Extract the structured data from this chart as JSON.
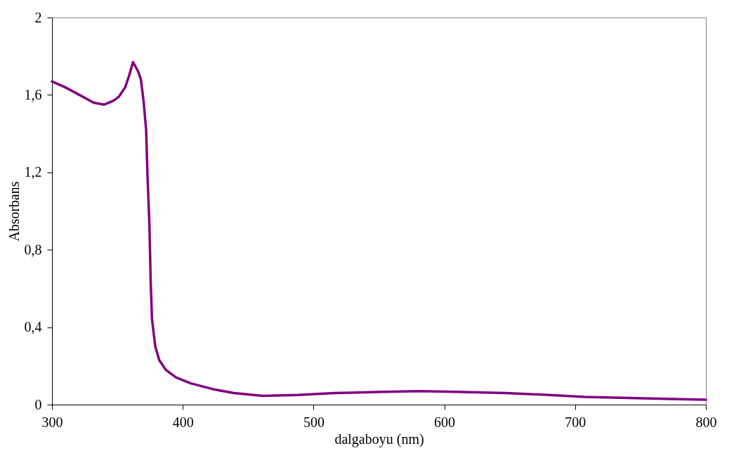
{
  "chart_data": {
    "type": "line",
    "xlabel": "dalgaboyu (nm)",
    "ylabel": "Absorbans",
    "x": [
      300,
      310,
      321,
      332,
      340,
      347,
      351,
      356,
      359,
      362,
      366,
      368,
      370,
      372,
      373,
      374.5,
      375.5,
      376.5,
      379,
      382,
      387,
      395,
      406,
      423,
      439,
      461,
      488,
      516,
      549,
      581,
      614,
      647,
      680,
      707,
      735,
      768,
      800
    ],
    "series": [
      {
        "color": "#800080",
        "values": [
          1.67,
          1.64,
          1.6,
          1.56,
          1.55,
          1.57,
          1.59,
          1.64,
          1.7,
          1.77,
          1.72,
          1.68,
          1.57,
          1.42,
          1.19,
          0.93,
          0.63,
          0.44,
          0.3,
          0.23,
          0.18,
          0.14,
          0.11,
          0.08,
          0.06,
          0.045,
          0.05,
          0.06,
          0.065,
          0.07,
          0.065,
          0.06,
          0.05,
          0.04,
          0.035,
          0.03,
          0.025
        ]
      }
    ],
    "xlim": [
      300,
      800
    ],
    "xticks": [
      300,
      400,
      500,
      600,
      700,
      800
    ],
    "ylim": [
      0,
      2
    ],
    "yticks": [
      0,
      {
        "value": 0.4,
        "label": "0,4"
      },
      {
        "value": 0.8,
        "label": "0,8"
      },
      {
        "value": 1.2,
        "label": "1,2"
      },
      {
        "value": 1.6,
        "label": "1,6"
      },
      2
    ],
    "grid": false,
    "marker": "none",
    "line_style": "solid"
  }
}
